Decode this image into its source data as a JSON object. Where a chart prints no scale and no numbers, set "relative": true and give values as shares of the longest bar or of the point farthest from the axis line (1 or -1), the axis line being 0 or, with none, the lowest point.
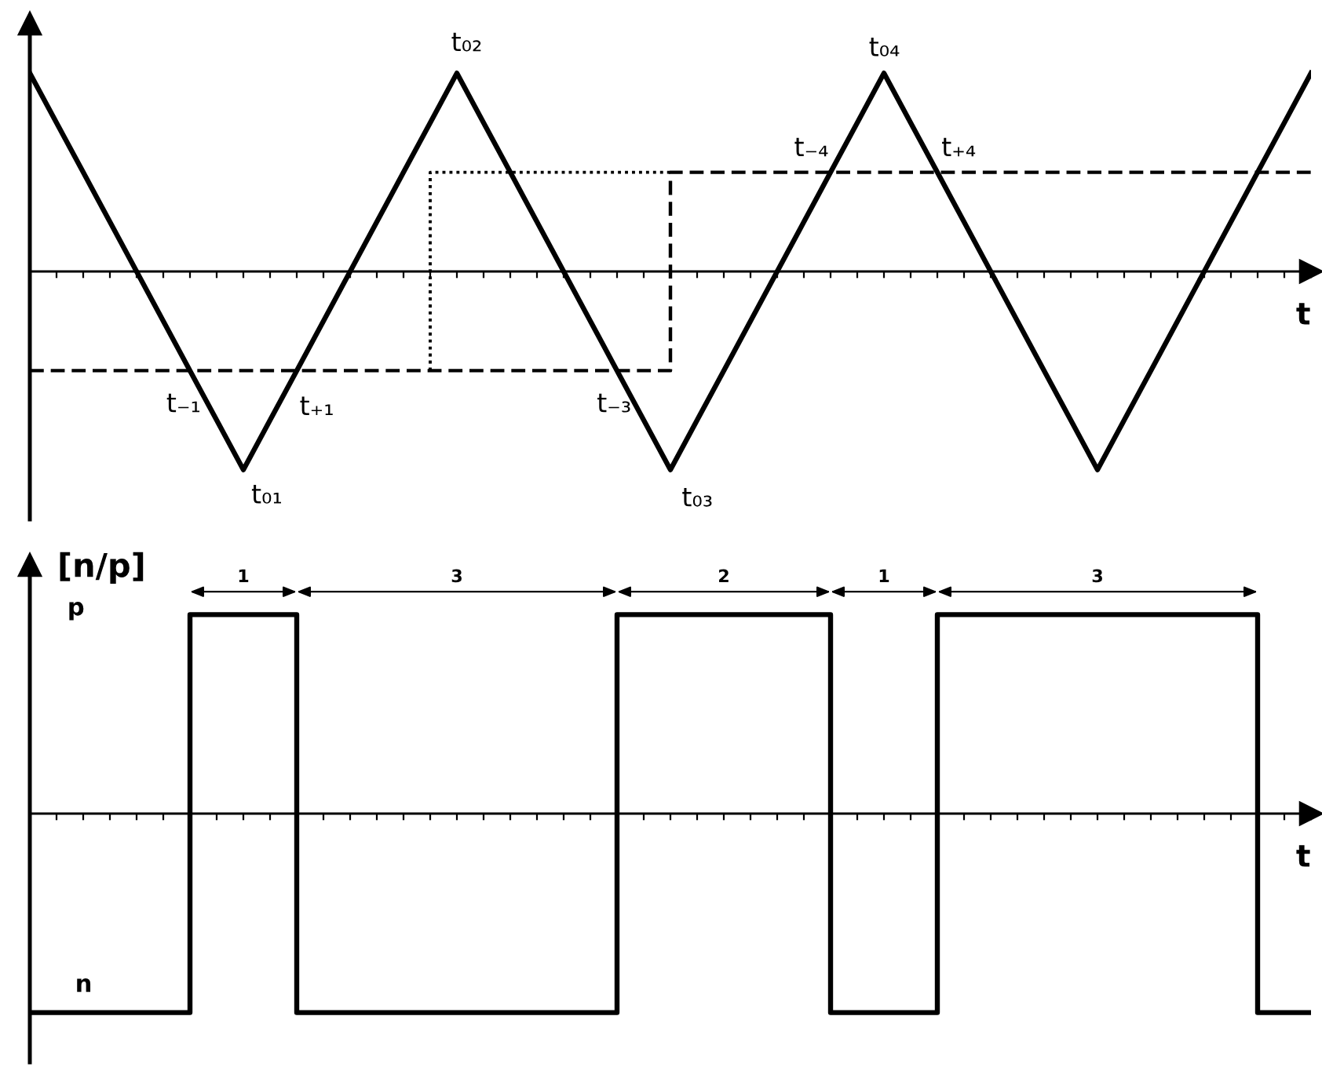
{
  "chart_data": [
    {
      "type": "line",
      "xlabel": "t",
      "relative": true,
      "categories": [
        null,
        null,
        null,
        null,
        null,
        null,
        null,
        null,
        null,
        null,
        null,
        null,
        null,
        null,
        null,
        null,
        null,
        null,
        null,
        null,
        null,
        null,
        null,
        null,
        null,
        null,
        null,
        null,
        null,
        null,
        null,
        null,
        null,
        null,
        null,
        null,
        null,
        null,
        null,
        null,
        null,
        null,
        null,
        null,
        null,
        null,
        null,
        null,
        null
      ],
      "series": [
        {
          "color": "#000000",
          "line_style": "solid",
          "values": [
            1,
            0.75,
            0.5,
            0.25,
            0,
            -0.25,
            -0.5,
            -0.75,
            -1,
            -0.75,
            -0.5,
            -0.25,
            0,
            0.25,
            0.5,
            0.75,
            1,
            0.75,
            0.5,
            0.25,
            0,
            -0.25,
            -0.5,
            -0.75,
            -1,
            -0.75,
            -0.5,
            -0.25,
            0,
            0.25,
            0.5,
            0.75,
            1,
            0.75,
            0.5,
            0.25,
            0,
            -0.25,
            -0.5,
            -0.75,
            -1,
            -0.75,
            -0.5,
            -0.25,
            0,
            0.25,
            0.5,
            0.75,
            1
          ]
        },
        {
          "type": "step",
          "color": "#000000",
          "line_style": "dashed",
          "values": [
            -0.5,
            -0.5,
            -0.5,
            -0.5,
            -0.5,
            -0.5,
            -0.5,
            -0.5,
            -0.5,
            -0.5,
            -0.5,
            -0.5,
            -0.5,
            -0.5,
            -0.5,
            -0.5,
            -0.5,
            -0.5,
            -0.5,
            -0.5,
            -0.5,
            -0.5,
            -0.5,
            -0.5,
            -0.5,
            0.5,
            0.5,
            0.5,
            0.5,
            0.5,
            0.5,
            0.5,
            0.5,
            0.5,
            0.5,
            0.5,
            0.5,
            0.5,
            0.5,
            0.5,
            0.5,
            0.5,
            0.5,
            0.5,
            0.5,
            0.5,
            0.5,
            0.5,
            0.5
          ]
        },
        {
          "type": "step",
          "color": "#000000",
          "line_style": "dotted",
          "values": [
            null,
            null,
            null,
            null,
            null,
            null,
            null,
            null,
            null,
            null,
            null,
            null,
            null,
            null,
            null,
            -0.5,
            0.5,
            0.5,
            0.5,
            0.5,
            0.5,
            0.5,
            0.5,
            0.5,
            0.5,
            null,
            null,
            null,
            null,
            null,
            null,
            null,
            null,
            null,
            null,
            null,
            null,
            null,
            null,
            null,
            null,
            null,
            null,
            null,
            null,
            null,
            null,
            null,
            null
          ]
        }
      ],
      "annotations": [
        "t₀₁",
        "t₀₂",
        "t₀₃",
        "t₀₄",
        "t₋₁",
        "t₊₁",
        "t₋₃",
        "t₋₄",
        "t₊₄"
      ]
    },
    {
      "type": "step",
      "xlabel": "t",
      "ylabel": "[n/p]",
      "relative": true,
      "categories": [
        null,
        null,
        null,
        null,
        null,
        null,
        null,
        null,
        null,
        null,
        null,
        null,
        null,
        null,
        null,
        null,
        null,
        null,
        null,
        null,
        null,
        null,
        null,
        null,
        null,
        null,
        null,
        null,
        null,
        null,
        null,
        null,
        null,
        null,
        null,
        null,
        null,
        null,
        null,
        null,
        null,
        null,
        null,
        null,
        null,
        null,
        null,
        null,
        null
      ],
      "series": [
        {
          "color": "#000000",
          "line_style": "solid",
          "values": [
            -1,
            -1,
            -1,
            -1,
            -1,
            -1,
            -1,
            1,
            1,
            1,
            1,
            -1,
            -1,
            -1,
            -1,
            -1,
            -1,
            -1,
            -1,
            -1,
            -1,
            -1,
            -1,
            1,
            1,
            1,
            1,
            1,
            1,
            1,
            1,
            -1,
            -1,
            -1,
            -1,
            1,
            1,
            1,
            1,
            1,
            1,
            1,
            1,
            1,
            1,
            1,
            1,
            -1,
            -1
          ]
        }
      ],
      "annotations": [
        "1",
        "3",
        "2",
        "1",
        "3",
        "p",
        "n"
      ]
    }
  ]
}
